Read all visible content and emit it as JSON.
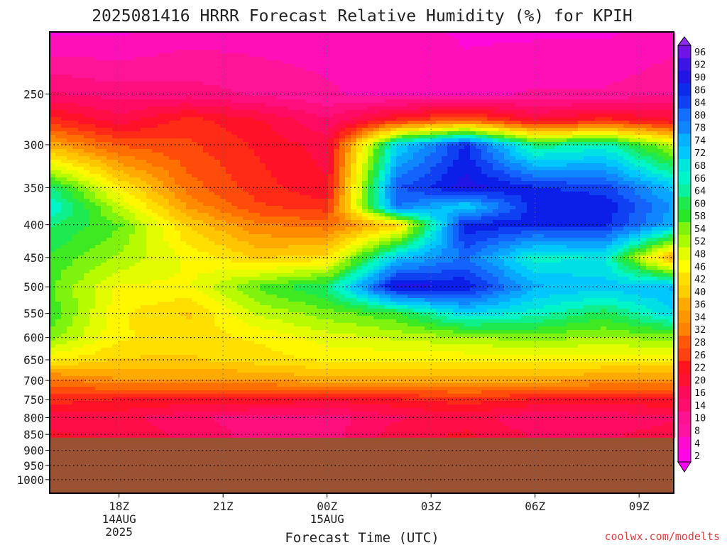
{
  "chart_data": {
    "type": "heatmap",
    "title": "2025081416 HRRR Forecast Relative Humidity (%) for KPIH",
    "xlabel": "Forecast Time (UTC)",
    "ylabel": "",
    "credit": "coolwx.com/modelts",
    "x_ticks": [
      {
        "label": "18Z",
        "sub1": "14AUG",
        "sub2": "2025",
        "hour": 2
      },
      {
        "label": "21Z",
        "sub1": "",
        "sub2": "",
        "hour": 5
      },
      {
        "label": "00Z",
        "sub1": "15AUG",
        "sub2": "",
        "hour": 8
      },
      {
        "label": "03Z",
        "sub1": "",
        "sub2": "",
        "hour": 11
      },
      {
        "label": "06Z",
        "sub1": "",
        "sub2": "",
        "hour": 14
      },
      {
        "label": "09Z",
        "sub1": "",
        "sub2": "",
        "hour": 17
      }
    ],
    "y_ticks": [
      "250",
      "300",
      "350",
      "400",
      "450",
      "500",
      "550",
      "600",
      "650",
      "700",
      "750",
      "800",
      "850",
      "900",
      "950",
      "1000"
    ],
    "y_values": [
      250,
      300,
      350,
      400,
      450,
      500,
      550,
      600,
      650,
      700,
      750,
      800,
      850,
      900,
      950,
      1000
    ],
    "y_scale": "log (pressure, hPa)",
    "ylim": [
      200,
      1050
    ],
    "xlim": [
      0,
      18
    ],
    "ground_level_hPa": 860,
    "colorbar_labels": [
      "96",
      "92",
      "90",
      "86",
      "84",
      "80",
      "78",
      "74",
      "72",
      "68",
      "66",
      "64",
      "60",
      "58",
      "54",
      "52",
      "48",
      "46",
      "42",
      "40",
      "36",
      "34",
      "32",
      "28",
      "26",
      "22",
      "20",
      "16",
      "14",
      "10",
      "8",
      "4",
      "2"
    ],
    "colors": {
      "ground": "#9a5232",
      "low_rh": "#ff1aa3",
      "mid_rh": "#ffff00",
      "high_rh": "#1010dd",
      "credit": "#e04040"
    },
    "hours": [
      0,
      2,
      4,
      6,
      8,
      10,
      12,
      14,
      16,
      18
    ],
    "levels_hPa": [
      200,
      250,
      275,
      300,
      350,
      375,
      400,
      450,
      500,
      550,
      600,
      650,
      700,
      750,
      800,
      850,
      860
    ],
    "rh_grid": [
      [
        4,
        4,
        6,
        6,
        6,
        6,
        4,
        4,
        4,
        6
      ],
      [
        14,
        12,
        12,
        10,
        8,
        6,
        6,
        8,
        8,
        10
      ],
      [
        24,
        18,
        24,
        20,
        14,
        24,
        30,
        20,
        24,
        20
      ],
      [
        36,
        28,
        26,
        22,
        18,
        70,
        86,
        62,
        66,
        50
      ],
      [
        62,
        44,
        30,
        24,
        20,
        82,
        90,
        86,
        84,
        72
      ],
      [
        68,
        50,
        34,
        26,
        24,
        80,
        70,
        88,
        88,
        76
      ],
      [
        62,
        56,
        40,
        32,
        30,
        40,
        88,
        86,
        86,
        74
      ],
      [
        58,
        52,
        46,
        40,
        42,
        72,
        80,
        66,
        68,
        34
      ],
      [
        56,
        46,
        46,
        56,
        62,
        90,
        88,
        74,
        72,
        74
      ],
      [
        58,
        44,
        40,
        50,
        54,
        58,
        70,
        66,
        60,
        70
      ],
      [
        54,
        44,
        42,
        44,
        48,
        50,
        52,
        54,
        52,
        54
      ],
      [
        44,
        40,
        40,
        42,
        44,
        44,
        44,
        44,
        44,
        44
      ],
      [
        30,
        34,
        34,
        34,
        36,
        36,
        36,
        36,
        34,
        34
      ],
      [
        24,
        22,
        22,
        22,
        20,
        22,
        24,
        22,
        22,
        22
      ],
      [
        18,
        18,
        14,
        12,
        12,
        16,
        18,
        14,
        14,
        16
      ],
      [
        20,
        18,
        16,
        12,
        12,
        18,
        20,
        16,
        16,
        18
      ],
      [
        22,
        18,
        16,
        12,
        12,
        18,
        20,
        16,
        16,
        18
      ]
    ]
  }
}
